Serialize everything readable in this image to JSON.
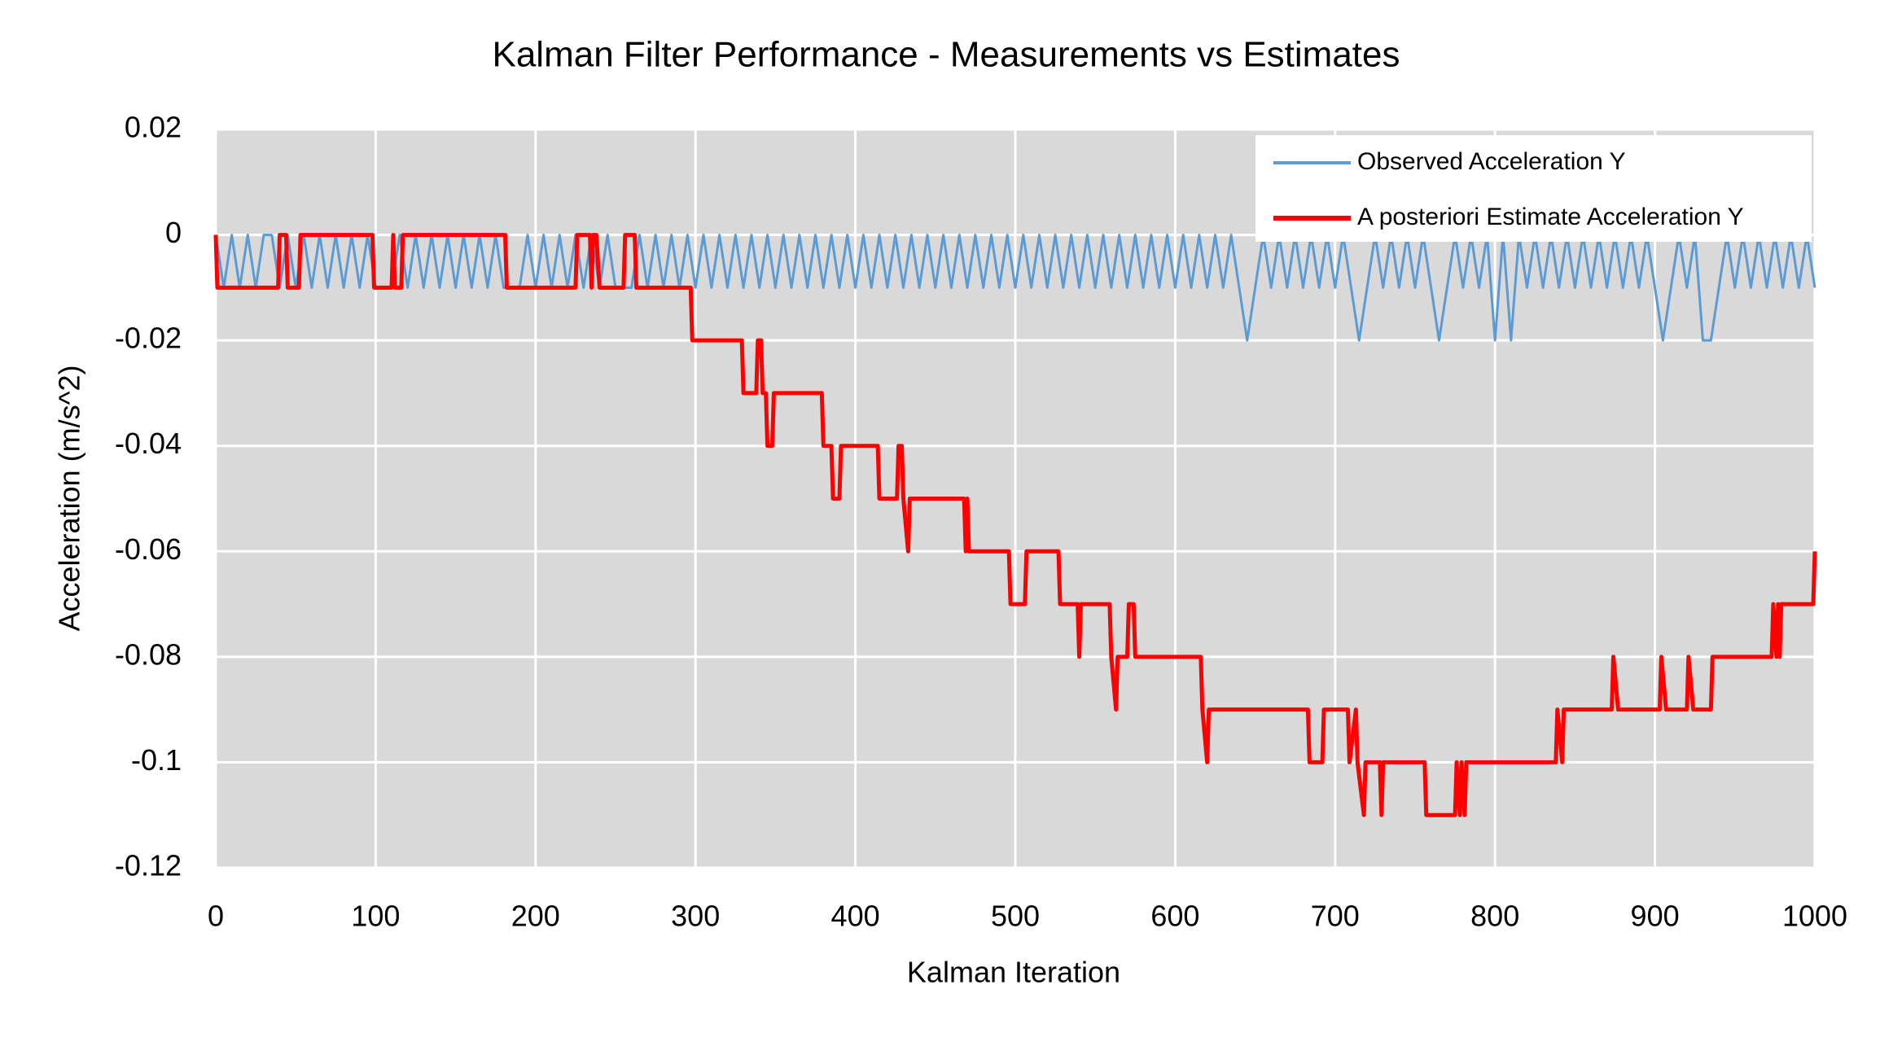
{
  "chart_data": {
    "type": "line",
    "title": "Kalman Filter Performance - Measurements vs Estimates",
    "x_label": "Kalman Iteration",
    "y_label": "Acceleration (m/s^2)",
    "xlim": [
      0,
      1000
    ],
    "xticks": [
      0,
      100,
      200,
      300,
      400,
      500,
      600,
      700,
      800,
      900,
      1000
    ],
    "ylim": [
      -0.12,
      0.02
    ],
    "yticks": [
      0.02,
      0,
      -0.02,
      -0.04,
      -0.06,
      -0.08,
      -0.1,
      -0.12
    ],
    "grid": true,
    "legend": "upper right",
    "series": [
      {
        "name": "Observed Acceleration Y",
        "color": "#5b9bd5",
        "x": [
          0,
          5,
          10,
          15,
          20,
          25,
          30,
          35,
          40,
          45,
          50,
          55,
          60,
          65,
          70,
          75,
          80,
          85,
          90,
          95,
          100,
          105,
          110,
          115,
          120,
          125,
          130,
          135,
          140,
          145,
          150,
          155,
          160,
          165,
          170,
          175,
          180,
          185,
          190,
          195,
          200,
          205,
          210,
          215,
          220,
          225,
          230,
          235,
          240,
          245,
          250,
          255,
          260,
          265,
          270,
          275,
          280,
          285,
          290,
          295,
          300,
          305,
          310,
          315,
          320,
          325,
          330,
          335,
          340,
          345,
          350,
          355,
          360,
          365,
          370,
          375,
          380,
          385,
          390,
          395,
          400,
          405,
          410,
          415,
          420,
          425,
          430,
          435,
          440,
          445,
          450,
          455,
          460,
          465,
          470,
          475,
          480,
          485,
          490,
          495,
          500,
          505,
          510,
          515,
          520,
          525,
          530,
          535,
          540,
          545,
          550,
          555,
          560,
          565,
          570,
          575,
          580,
          585,
          590,
          595,
          600,
          605,
          610,
          615,
          620,
          625,
          630,
          635,
          640,
          645,
          650,
          655,
          660,
          665,
          670,
          675,
          680,
          685,
          690,
          695,
          700,
          705,
          710,
          715,
          720,
          725,
          730,
          735,
          740,
          745,
          750,
          755,
          760,
          765,
          770,
          775,
          780,
          785,
          790,
          795,
          800,
          805,
          810,
          815,
          820,
          825,
          830,
          835,
          840,
          845,
          850,
          855,
          860,
          865,
          870,
          875,
          880,
          885,
          890,
          895,
          900,
          905,
          910,
          915,
          920,
          925,
          930,
          935,
          940,
          945,
          950,
          955,
          960,
          965,
          970,
          975,
          980,
          985,
          990,
          995,
          1000
        ],
        "values": [
          0,
          -0.01,
          0,
          -0.01,
          0,
          -0.01,
          0,
          0,
          -0.01,
          0,
          -0.01,
          0,
          -0.01,
          0,
          -0.01,
          0,
          -0.01,
          0,
          -0.01,
          0,
          -0.01,
          -0.01,
          -0.01,
          0,
          -0.01,
          0,
          -0.01,
          0,
          -0.01,
          0,
          -0.01,
          0,
          -0.01,
          0,
          -0.01,
          0,
          -0.01,
          -0.01,
          -0.01,
          0,
          -0.01,
          0,
          -0.01,
          0,
          -0.01,
          0,
          -0.01,
          0,
          -0.01,
          0,
          -0.01,
          -0.01,
          -0.01,
          0,
          -0.01,
          0,
          -0.01,
          0,
          -0.01,
          0,
          -0.01,
          0,
          -0.01,
          0,
          -0.01,
          0,
          -0.01,
          0,
          -0.01,
          0,
          -0.01,
          0,
          -0.01,
          0,
          -0.01,
          0,
          -0.01,
          0,
          -0.01,
          0,
          -0.01,
          0,
          -0.01,
          0,
          -0.01,
          0,
          -0.01,
          0,
          -0.01,
          0,
          -0.01,
          0,
          -0.01,
          0,
          -0.01,
          0,
          -0.01,
          0,
          -0.01,
          0,
          -0.01,
          0,
          -0.01,
          0,
          -0.01,
          0,
          -0.01,
          0,
          -0.01,
          0,
          -0.01,
          0,
          -0.01,
          0,
          -0.01,
          0,
          -0.01,
          0,
          -0.01,
          0,
          -0.01,
          0,
          -0.01,
          0,
          -0.01,
          0,
          -0.01,
          0,
          -0.01,
          -0.02,
          -0.01,
          0,
          -0.01,
          0,
          -0.01,
          0,
          -0.01,
          0,
          -0.01,
          0,
          -0.01,
          0,
          -0.01,
          -0.02,
          -0.01,
          0,
          -0.01,
          0,
          -0.01,
          0,
          -0.01,
          0,
          -0.01,
          -0.02,
          -0.01,
          0,
          -0.01,
          0,
          -0.01,
          0,
          -0.02,
          0,
          -0.02,
          0,
          -0.01,
          0,
          -0.01,
          0,
          -0.01,
          0,
          -0.01,
          0,
          -0.01,
          0,
          -0.01,
          0,
          -0.01,
          0,
          -0.01,
          0,
          -0.01,
          -0.02,
          -0.01,
          0,
          -0.01,
          0,
          -0.02,
          -0.02,
          -0.01,
          0,
          -0.01,
          0,
          -0.01,
          0,
          -0.01,
          0,
          -0.01,
          0,
          -0.01,
          0,
          -0.01
        ]
      },
      {
        "name": "A posteriori Estimate Acceleration Y",
        "color": "#ff0000",
        "x": [
          0,
          1,
          39,
          40,
          44,
          45,
          52,
          53,
          98,
          99,
          110,
          111,
          112,
          116,
          117,
          181,
          182,
          225,
          226,
          234,
          235,
          236,
          238,
          240,
          255,
          256,
          262,
          263,
          297,
          298,
          329,
          330,
          338,
          339,
          341,
          342,
          344,
          345,
          348,
          349,
          379,
          380,
          385,
          386,
          390,
          391,
          414,
          415,
          426,
          427,
          429,
          430,
          433,
          434,
          468,
          469,
          470,
          471,
          496,
          497,
          506,
          507,
          527,
          528,
          539,
          540,
          541,
          559,
          560,
          563,
          564,
          570,
          571,
          574,
          575,
          616,
          617,
          620,
          621,
          683,
          684,
          692,
          693,
          708,
          709,
          713,
          714,
          718,
          719,
          728,
          729,
          730,
          756,
          757,
          775,
          776,
          778,
          779,
          781,
          782,
          838,
          839,
          842,
          843,
          873,
          874,
          877,
          903,
          904,
          907,
          920,
          921,
          924,
          935,
          936,
          973,
          974,
          976,
          977,
          978,
          979,
          999,
          1000
        ],
        "values": [
          0,
          -0.01,
          -0.01,
          0,
          0,
          -0.01,
          -0.01,
          0,
          0,
          -0.01,
          -0.01,
          0,
          -0.01,
          -0.01,
          0,
          0,
          -0.01,
          -0.01,
          0,
          0,
          -0.01,
          0,
          0,
          -0.01,
          -0.01,
          0,
          0,
          -0.01,
          -0.01,
          -0.02,
          -0.02,
          -0.03,
          -0.03,
          -0.02,
          -0.02,
          -0.03,
          -0.03,
          -0.04,
          -0.04,
          -0.03,
          -0.03,
          -0.04,
          -0.04,
          -0.05,
          -0.05,
          -0.04,
          -0.04,
          -0.05,
          -0.05,
          -0.04,
          -0.04,
          -0.05,
          -0.06,
          -0.05,
          -0.05,
          -0.06,
          -0.05,
          -0.06,
          -0.06,
          -0.07,
          -0.07,
          -0.06,
          -0.06,
          -0.07,
          -0.07,
          -0.08,
          -0.07,
          -0.07,
          -0.08,
          -0.09,
          -0.08,
          -0.08,
          -0.07,
          -0.07,
          -0.08,
          -0.08,
          -0.09,
          -0.1,
          -0.09,
          -0.09,
          -0.1,
          -0.1,
          -0.09,
          -0.09,
          -0.1,
          -0.09,
          -0.1,
          -0.11,
          -0.1,
          -0.1,
          -0.11,
          -0.1,
          -0.1,
          -0.11,
          -0.11,
          -0.1,
          -0.11,
          -0.1,
          -0.11,
          -0.1,
          -0.1,
          -0.09,
          -0.1,
          -0.09,
          -0.09,
          -0.08,
          -0.09,
          -0.09,
          -0.08,
          -0.09,
          -0.09,
          -0.08,
          -0.09,
          -0.09,
          -0.08,
          -0.08,
          -0.07,
          -0.08,
          -0.07,
          -0.08,
          -0.07,
          -0.07,
          -0.06
        ]
      }
    ]
  }
}
